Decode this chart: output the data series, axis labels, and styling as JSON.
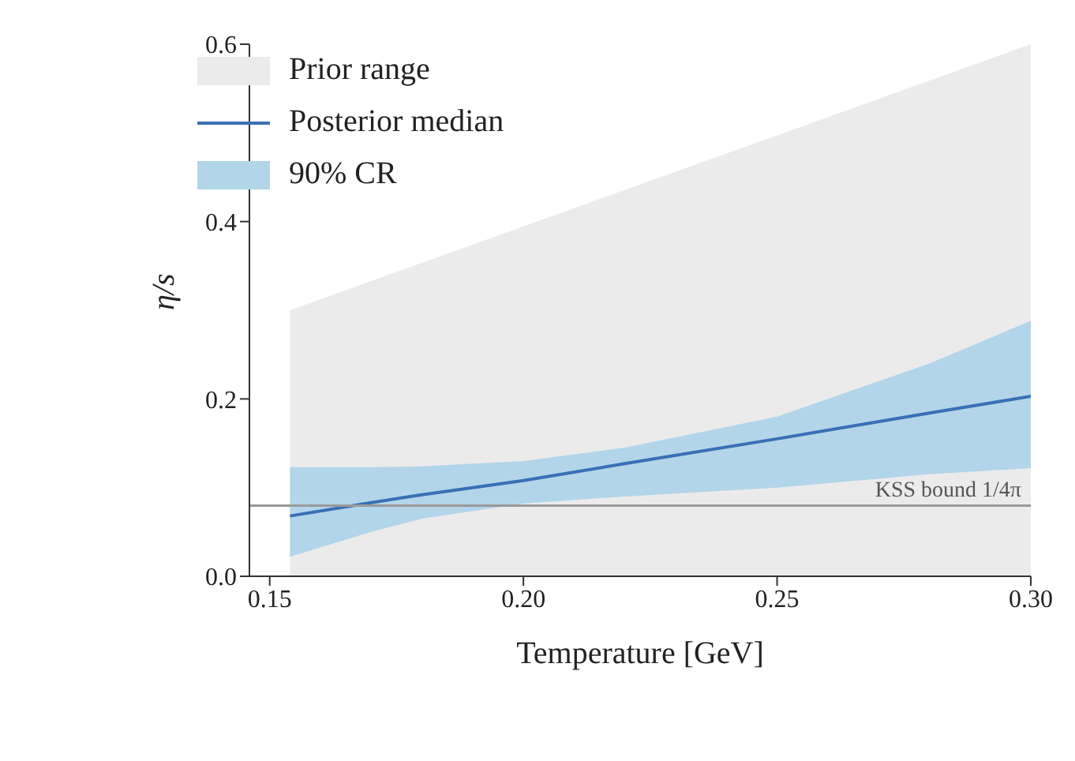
{
  "chart_data": {
    "type": "area",
    "xlabel": "Temperature [GeV]",
    "ylabel": "η/s",
    "xlim": [
      0.146,
      0.3
    ],
    "xticks": [
      {
        "value": 0.15,
        "label": "0.15"
      },
      {
        "value": 0.2,
        "label": "0.20"
      },
      {
        "value": 0.25,
        "label": "0.25"
      },
      {
        "value": 0.3,
        "label": "0.30"
      }
    ],
    "ylim": [
      0,
      0.6
    ],
    "yticks": [
      {
        "value": 0,
        "label": "0.0"
      },
      {
        "value": 0.2,
        "label": "0.2"
      },
      {
        "value": 0.4,
        "label": "0.4"
      },
      {
        "value": 0.6,
        "label": "0.6"
      }
    ],
    "series": [
      {
        "name": "Prior range",
        "color": "#ebebeb",
        "x": [
          0.154,
          0.3
        ],
        "values": [
          0.3,
          0.6
        ]
      },
      {
        "name": "Posterior median",
        "type": "line",
        "color": "#3a6fb5",
        "x": [
          0.154,
          0.17,
          0.18,
          0.2,
          0.22,
          0.25,
          0.28,
          0.3
        ],
        "values": [
          0.068,
          0.083,
          0.092,
          0.108,
          0.127,
          0.155,
          0.184,
          0.203
        ],
        "lower": [
          0.022,
          0.05,
          0.065,
          0.082,
          0.09,
          0.1,
          0.115,
          0.122
        ],
        "upper": [
          0.123,
          0.123,
          0.124,
          0.13,
          0.145,
          0.18,
          0.24,
          0.288
        ]
      }
    ],
    "annotations": [
      "90% CR"
    ],
    "ref_lines": [
      {
        "axis": "y",
        "value": 0.0796,
        "label": "KSS bound 1/4π",
        "color": "#999999"
      }
    ],
    "legend": "top left"
  }
}
